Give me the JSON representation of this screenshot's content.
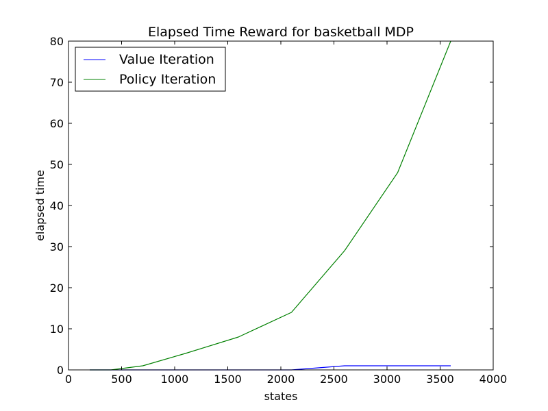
{
  "chart_data": {
    "type": "line",
    "title": "Elapsed Time  Reward for basketball MDP",
    "xlabel": "states",
    "ylabel": "elapsed time",
    "xlim": [
      0,
      4000
    ],
    "ylim": [
      0,
      80
    ],
    "xticks": [
      0,
      500,
      1000,
      1500,
      2000,
      2500,
      3000,
      3500,
      4000
    ],
    "yticks": [
      0,
      10,
      20,
      30,
      40,
      50,
      60,
      70,
      80
    ],
    "grid": false,
    "legend": "top-left",
    "series": [
      {
        "name": "Value Iteration",
        "color": "#0000ff",
        "x": [
          200,
          400,
          700,
          1100,
          1600,
          2100,
          2600,
          3100,
          3600
        ],
        "y": [
          0,
          0,
          0,
          0,
          0,
          0,
          1,
          1,
          1
        ]
      },
      {
        "name": "Policy Iteration",
        "color": "#008000",
        "x": [
          200,
          400,
          700,
          1100,
          1600,
          2100,
          2600,
          3100,
          3600
        ],
        "y": [
          0,
          0,
          1,
          4,
          8,
          14,
          29,
          48,
          80
        ]
      }
    ]
  }
}
